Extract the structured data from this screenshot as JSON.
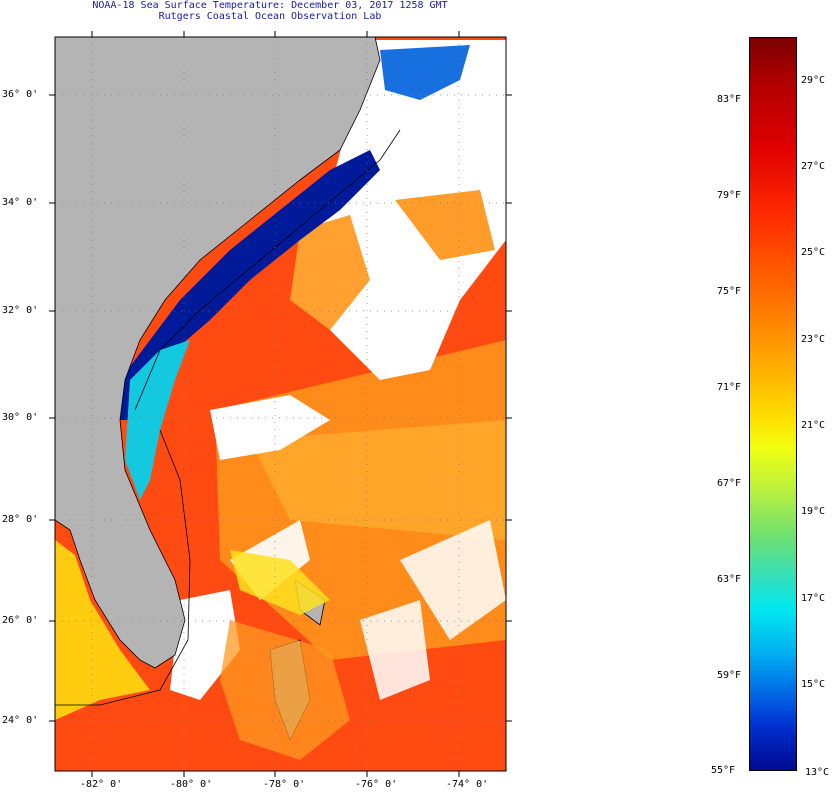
{
  "title_line1": "NOAA-18 Sea Surface Temperature:  December 03, 2017 1258 GMT",
  "title_line2": "Rutgers Coastal Ocean Observation Lab",
  "lat_labels": [
    "36° 0'",
    "34° 0'",
    "32° 0'",
    "30° 0'",
    "28° 0'",
    "26° 0'",
    "24° 0'"
  ],
  "lon_labels": [
    "-82° 0'",
    "-80° 0'",
    "-78° 0'",
    "-76° 0'",
    "-74° 0'"
  ],
  "colorbar": {
    "fahrenheit_labels": [
      "83°F",
      "79°F",
      "75°F",
      "71°F",
      "67°F",
      "63°F",
      "59°F",
      "55°F"
    ],
    "celsius_labels": [
      "29°C",
      "27°C",
      "25°C",
      "23°C",
      "21°C",
      "19°C",
      "17°C",
      "15°C",
      "13°C"
    ]
  },
  "colors": {
    "land": "#b4b4b4",
    "cloud": "#ffffff",
    "warm": "#ff4a10",
    "mid": "#ff9a20",
    "cold": "#001a9a"
  }
}
